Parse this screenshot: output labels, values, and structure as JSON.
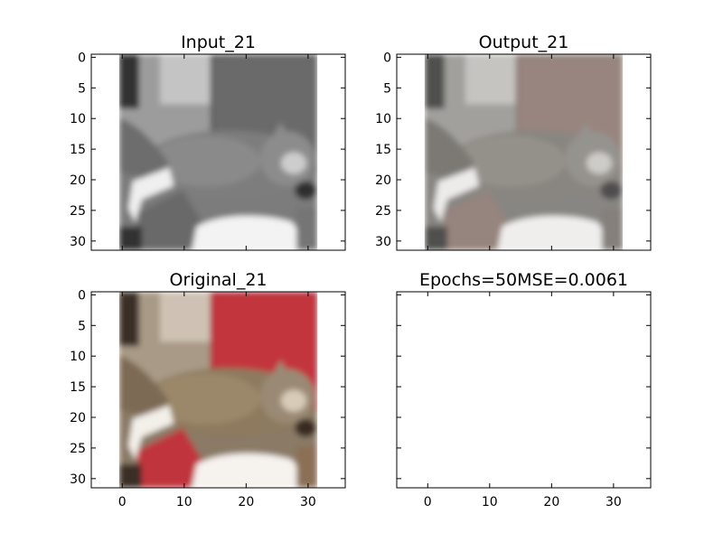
{
  "chart_data": [
    {
      "type": "image",
      "title": "Input_21",
      "content": "grayscale cat image",
      "xlim": [
        -5,
        36
      ],
      "ylim": [
        31.5,
        -0.5
      ],
      "xticks": [
        0,
        10,
        20,
        30
      ],
      "yticks": [
        0,
        5,
        10,
        15,
        20,
        25,
        30
      ],
      "show_xtick_labels": false,
      "show_ytick_labels": true
    },
    {
      "type": "image",
      "title": "Output_21",
      "content": "reconstructed color cat image",
      "xlim": [
        -5,
        36
      ],
      "ylim": [
        31.5,
        -0.5
      ],
      "xticks": [
        0,
        10,
        20,
        30
      ],
      "yticks": [
        0,
        5,
        10,
        15,
        20,
        25,
        30
      ],
      "show_xtick_labels": false,
      "show_ytick_labels": true
    },
    {
      "type": "image",
      "title": "Original_21",
      "content": "original color cat image",
      "xlim": [
        -5,
        36
      ],
      "ylim": [
        31.5,
        -0.5
      ],
      "xticks": [
        0,
        10,
        20,
        30
      ],
      "yticks": [
        0,
        5,
        10,
        15,
        20,
        25,
        30
      ],
      "show_xtick_labels": true,
      "show_ytick_labels": true
    },
    {
      "type": "empty",
      "title": "Epochs=50MSE=0.0061",
      "xlim": [
        -5,
        36
      ],
      "ylim": [
        31.5,
        -0.5
      ],
      "xticks": [
        0,
        10,
        20,
        30
      ],
      "yticks": [
        0,
        5,
        10,
        15,
        20,
        25,
        30
      ],
      "show_xtick_labels": true,
      "show_ytick_labels": false
    }
  ]
}
